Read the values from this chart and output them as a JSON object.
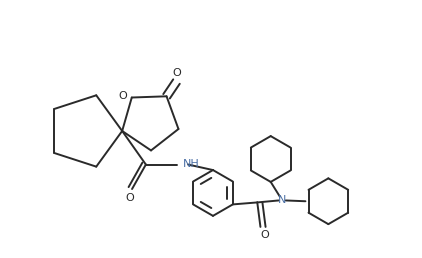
{
  "background_color": "#ffffff",
  "line_color": "#2a2a2a",
  "label_color": "#2a2a2a",
  "N_color": "#4a6fa5",
  "line_width": 1.4,
  "figsize": [
    4.22,
    2.58
  ],
  "dpi": 100,
  "xlim": [
    0,
    10.5
  ],
  "ylim": [
    0,
    6.5
  ]
}
